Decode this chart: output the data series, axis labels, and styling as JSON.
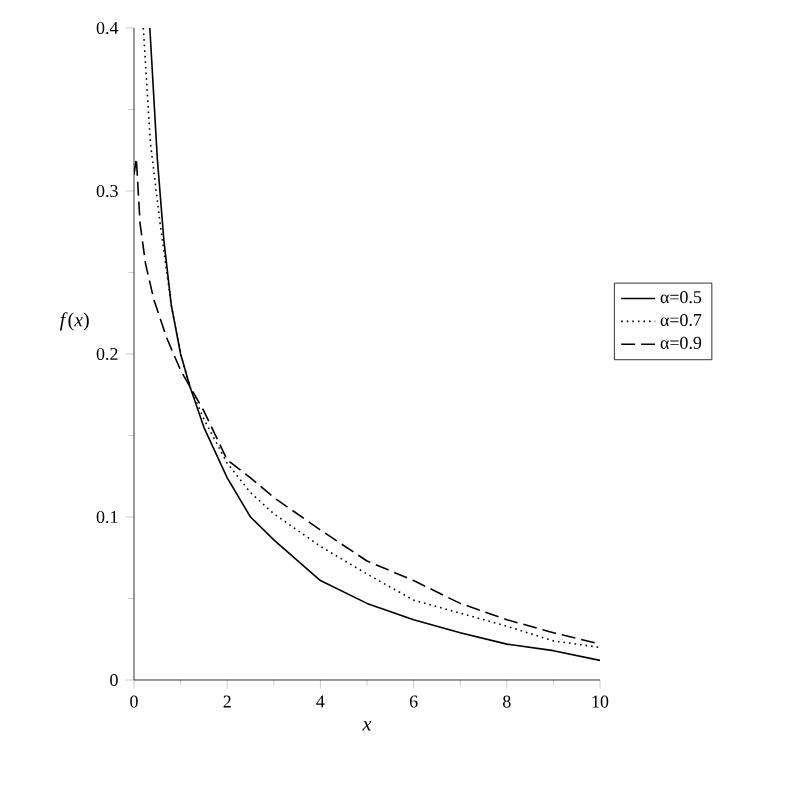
{
  "chart_data": {
    "type": "line",
    "xlabel": "x",
    "ylabel": "*f*(*x*)",
    "xlim": [
      0,
      10
    ],
    "ylim": [
      0,
      0.4
    ],
    "xticks": [
      0,
      2,
      4,
      6,
      8,
      10
    ],
    "yticks": [
      0,
      0.1,
      0.2,
      0.3,
      0.4
    ],
    "legend": "right",
    "grid": false,
    "marker": "none",
    "series": [
      {
        "name": "α=0.5",
        "color": "#000000",
        "line_style": "solid",
        "x": [
          0.34,
          0.5,
          0.64,
          0.8,
          1,
          1.2,
          1.5,
          2,
          2.5,
          3,
          4,
          5,
          6,
          7,
          8,
          9,
          10
        ],
        "values": [
          0.4,
          0.32,
          0.27,
          0.23,
          0.2,
          0.18,
          0.155,
          0.124,
          0.1,
          0.086,
          0.061,
          0.047,
          0.037,
          0.029,
          0.022,
          0.018,
          0.012
        ]
      },
      {
        "name": "α=0.7",
        "color": "#000000",
        "line_style": "dotted",
        "x": [
          0.2,
          0.35,
          0.56,
          0.8,
          1,
          1.2,
          1.5,
          2,
          2.5,
          3,
          4,
          5,
          6,
          7,
          8,
          9,
          10
        ],
        "values": [
          0.4,
          0.33,
          0.28,
          0.23,
          0.2,
          0.18,
          0.16,
          0.133,
          0.115,
          0.102,
          0.082,
          0.065,
          0.049,
          0.041,
          0.033,
          0.024,
          0.02
        ]
      },
      {
        "name": "α=0.9",
        "color": "#000000",
        "line_style": "dashed",
        "x": [
          0,
          0.05,
          0.13,
          0.25,
          0.43,
          0.7,
          1,
          1.2,
          1.5,
          2,
          2.5,
          3,
          4,
          5,
          6,
          7,
          8,
          9,
          10
        ],
        "values": [
          0.31,
          0.32,
          0.28,
          0.255,
          0.233,
          0.21,
          0.19,
          0.18,
          0.165,
          0.135,
          0.124,
          0.112,
          0.092,
          0.073,
          0.061,
          0.047,
          0.037,
          0.029,
          0.022
        ]
      }
    ]
  }
}
